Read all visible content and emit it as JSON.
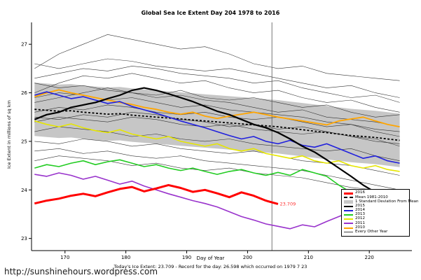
{
  "page": {
    "url": "http://sunshinehours.wordpress.com",
    "footer": "Today's Ice Extent: 23.709   - Record for the day: 26.598 which occurred on 1979 7 23"
  },
  "chart_data": {
    "type": "line",
    "title": "Global Sea Ice Extent Day 204 1978 to 2016",
    "xlabel": "Day of Year",
    "ylabel": "Ice Extent in millions of sq km",
    "xlim": [
      164.5,
      227
    ],
    "ylim": [
      22.75,
      27.45
    ],
    "xticks": [
      170,
      180,
      190,
      200,
      210,
      220
    ],
    "yticks": [
      23,
      24,
      25,
      26,
      27
    ],
    "grid": false,
    "legend_position": "right-inside",
    "vline_x": 204,
    "vline_color": "#555555",
    "annotation": {
      "text": "23.709",
      "x": 205.3,
      "y": 23.71,
      "color": "#ff3333"
    },
    "days_main": [
      165,
      167,
      169,
      171,
      173,
      175,
      177,
      179,
      181,
      183,
      185,
      187,
      189,
      191,
      193,
      195,
      197,
      199,
      201,
      203,
      205,
      207,
      209,
      211,
      213,
      215,
      217,
      219,
      221,
      223,
      225
    ],
    "mean": {
      "label": "Mean 1981-2010",
      "color": "#000000",
      "values": [
        25.66,
        25.64,
        25.62,
        25.63,
        25.6,
        25.58,
        25.56,
        25.57,
        25.54,
        25.52,
        25.5,
        25.48,
        25.46,
        25.44,
        25.42,
        25.4,
        25.38,
        25.36,
        25.34,
        25.32,
        25.3,
        25.27,
        25.24,
        25.21,
        25.18,
        25.15,
        25.12,
        25.1,
        25.08,
        25.05,
        25.02
      ]
    },
    "band": {
      "label": "1 Standard Deviation From Mean",
      "offset": 0.55,
      "color": "#c6c6c6"
    },
    "background": {
      "label": "Every Other Year",
      "color": "#333333",
      "days": [
        165,
        169,
        173,
        177,
        181,
        185,
        189,
        193,
        197,
        201,
        205,
        209,
        213,
        217,
        221,
        225
      ],
      "sets": [
        [
          26.5,
          26.8,
          27.0,
          27.2,
          27.1,
          27.0,
          26.9,
          26.95,
          26.8,
          26.6,
          26.5,
          26.55,
          26.4,
          26.35,
          26.3,
          26.25
        ],
        [
          26.0,
          26.2,
          26.35,
          26.3,
          26.4,
          26.3,
          26.2,
          26.25,
          26.1,
          26.0,
          26.05,
          25.9,
          25.8,
          25.85,
          25.7,
          25.6
        ],
        [
          25.8,
          25.9,
          26.0,
          26.1,
          26.0,
          25.95,
          26.05,
          25.9,
          25.85,
          25.9,
          25.8,
          25.7,
          25.75,
          25.6,
          25.5,
          25.55
        ],
        [
          26.2,
          26.1,
          26.15,
          26.05,
          26.0,
          25.9,
          25.95,
          25.85,
          25.8,
          25.7,
          25.6,
          25.65,
          25.5,
          25.45,
          25.4,
          25.3
        ],
        [
          25.6,
          25.7,
          25.65,
          25.75,
          25.7,
          25.6,
          25.55,
          25.6,
          25.5,
          25.45,
          25.5,
          25.4,
          25.3,
          25.35,
          25.2,
          25.1
        ],
        [
          25.4,
          25.5,
          25.45,
          25.4,
          25.5,
          25.45,
          25.35,
          25.3,
          25.35,
          25.25,
          25.2,
          25.15,
          25.2,
          25.1,
          25.0,
          24.95
        ],
        [
          25.2,
          25.3,
          25.25,
          25.2,
          25.1,
          25.15,
          25.05,
          25.0,
          25.05,
          24.95,
          24.9,
          24.85,
          24.8,
          24.85,
          24.7,
          24.6
        ],
        [
          25.0,
          24.95,
          25.05,
          25.0,
          24.9,
          24.95,
          24.85,
          24.8,
          24.75,
          24.8,
          24.7,
          24.6,
          24.55,
          24.5,
          24.4,
          24.3
        ],
        [
          24.8,
          24.85,
          24.75,
          24.8,
          24.7,
          24.65,
          24.7,
          24.6,
          24.55,
          24.5,
          24.45,
          24.4,
          24.3,
          24.2,
          24.1,
          24.0
        ],
        [
          26.3,
          26.4,
          26.5,
          26.45,
          26.55,
          26.5,
          26.4,
          26.35,
          26.3,
          26.2,
          26.25,
          26.1,
          26.0,
          25.9,
          25.95,
          25.8
        ],
        [
          25.9,
          26.0,
          25.95,
          25.85,
          25.9,
          25.8,
          25.7,
          25.75,
          25.65,
          25.6,
          25.55,
          25.5,
          25.4,
          25.35,
          25.25,
          25.2
        ],
        [
          25.5,
          25.45,
          25.55,
          25.5,
          25.6,
          25.55,
          25.45,
          25.4,
          25.3,
          25.35,
          25.25,
          25.3,
          25.2,
          25.1,
          25.05,
          24.9
        ],
        [
          24.6,
          24.7,
          24.65,
          24.6,
          24.5,
          24.55,
          24.45,
          24.4,
          24.45,
          24.35,
          24.3,
          24.25,
          24.15,
          24.05,
          24.0,
          23.9
        ],
        [
          26.6,
          26.5,
          26.6,
          26.7,
          26.65,
          26.55,
          26.5,
          26.45,
          26.5,
          26.4,
          26.3,
          26.2,
          26.1,
          26.15,
          26.0,
          25.9
        ]
      ]
    },
    "series": [
      {
        "name": "2010",
        "color": "#ffa500",
        "width": 1.8,
        "values": [
          25.92,
          26.0,
          26.06,
          26.0,
          25.95,
          25.9,
          25.85,
          25.8,
          25.76,
          25.7,
          25.66,
          25.6,
          25.56,
          25.6,
          25.52,
          25.47,
          25.52,
          25.56,
          25.6,
          25.55,
          25.5,
          25.46,
          25.42,
          25.38,
          25.34,
          25.42,
          25.46,
          25.5,
          25.42,
          25.35,
          25.3
        ]
      },
      {
        "name": "2012",
        "color": "#e6e600",
        "width": 1.6,
        "values": [
          25.42,
          25.35,
          25.3,
          25.36,
          25.28,
          25.22,
          25.18,
          25.24,
          25.15,
          25.1,
          25.05,
          25.1,
          25.0,
          24.95,
          24.9,
          24.95,
          24.85,
          24.8,
          24.85,
          24.75,
          24.7,
          24.65,
          24.7,
          24.6,
          24.55,
          24.6,
          24.5,
          24.45,
          24.5,
          24.42,
          24.38
        ]
      },
      {
        "name": "2014",
        "color": "#2020dd",
        "width": 1.6,
        "values": [
          25.95,
          26.02,
          25.95,
          25.88,
          25.92,
          25.85,
          25.78,
          25.82,
          25.72,
          25.65,
          25.58,
          25.5,
          25.42,
          25.35,
          25.28,
          25.2,
          25.12,
          25.05,
          25.1,
          25.0,
          24.95,
          25.02,
          24.92,
          24.88,
          24.95,
          24.85,
          24.75,
          24.65,
          24.7,
          24.6,
          24.55
        ]
      },
      {
        "name": "2013",
        "color": "#22cc22",
        "width": 1.6,
        "values": [
          24.45,
          24.52,
          24.48,
          24.55,
          24.6,
          24.52,
          24.58,
          24.62,
          24.55,
          24.48,
          24.52,
          24.45,
          24.4,
          24.45,
          24.38,
          24.32,
          24.38,
          24.42,
          24.35,
          24.3,
          24.36,
          24.3,
          24.42,
          24.35,
          24.28,
          24.1,
          23.95,
          23.8,
          23.68,
          23.58,
          23.52
        ]
      },
      {
        "name": "2011",
        "color": "#9933cc",
        "width": 1.6,
        "values": [
          24.32,
          24.28,
          24.35,
          24.3,
          24.22,
          24.28,
          24.2,
          24.12,
          24.18,
          24.08,
          24.0,
          23.92,
          23.85,
          23.78,
          23.72,
          23.65,
          23.55,
          23.45,
          23.38,
          23.3,
          23.25,
          23.2,
          23.28,
          23.24,
          23.35,
          23.45,
          23.55,
          23.65,
          23.75,
          23.82,
          23.88
        ]
      },
      {
        "name": "2015",
        "color": "#000000",
        "width": 2.2,
        "values": [
          25.45,
          25.55,
          25.6,
          25.7,
          25.75,
          25.8,
          25.88,
          25.95,
          26.05,
          26.1,
          26.05,
          25.98,
          25.9,
          25.82,
          25.72,
          25.62,
          25.55,
          25.45,
          25.35,
          25.28,
          25.18,
          25.05,
          24.9,
          24.78,
          24.62,
          24.45,
          24.28,
          24.1,
          23.95,
          23.85,
          23.78
        ]
      },
      {
        "name": "2016",
        "color": "#ff0000",
        "width": 3,
        "days": [
          165,
          167,
          169,
          171,
          173,
          175,
          177,
          179,
          181,
          183,
          185,
          187,
          189,
          191,
          193,
          195,
          197,
          199,
          201,
          203,
          205
        ],
        "values": [
          23.72,
          23.78,
          23.82,
          23.88,
          23.92,
          23.87,
          23.95,
          24.02,
          24.06,
          23.97,
          24.03,
          24.1,
          24.04,
          23.96,
          24.0,
          23.93,
          23.85,
          23.95,
          23.88,
          23.78,
          23.71
        ]
      }
    ],
    "legend": [
      {
        "label": "2016",
        "color": "#ff0000",
        "weight": 3,
        "dash": false
      },
      {
        "label": "Mean 1981-2010",
        "color": "#000000",
        "weight": 2,
        "dash": true
      },
      {
        "label": "1 Standard Deviation From Mean",
        "color": "#c6c6c6",
        "weight": 5,
        "dash": false
      },
      {
        "label": "2015",
        "color": "#000000",
        "weight": 2,
        "dash": false
      },
      {
        "label": "2014",
        "color": "#2020dd",
        "weight": 2,
        "dash": false
      },
      {
        "label": "2013",
        "color": "#22cc22",
        "weight": 2,
        "dash": false
      },
      {
        "label": "2012",
        "color": "#e6e600",
        "weight": 2,
        "dash": false
      },
      {
        "label": "2011",
        "color": "#9933cc",
        "weight": 2,
        "dash": false
      },
      {
        "label": "2010",
        "color": "#ffa500",
        "weight": 2,
        "dash": false
      },
      {
        "label": "Every Other Year",
        "color": "#444444",
        "weight": 1,
        "dash": false
      }
    ]
  }
}
